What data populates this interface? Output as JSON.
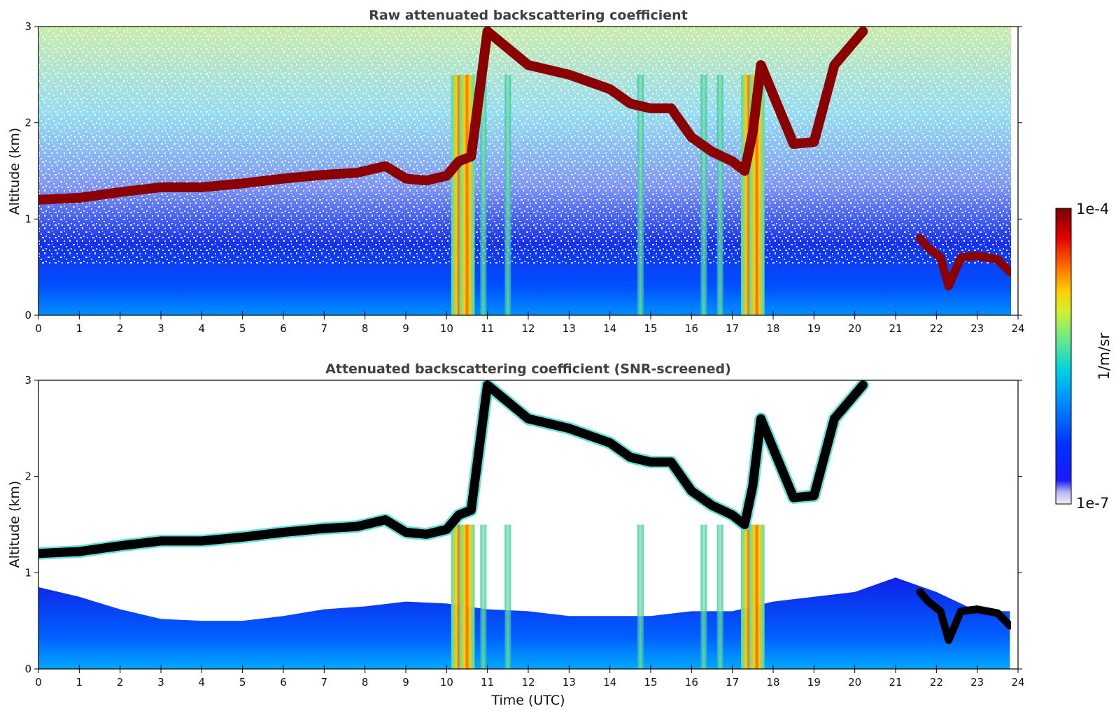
{
  "chart_data": [
    {
      "type": "heatmap",
      "title": "Raw attenuated backscattering coefficient",
      "xlabel": "",
      "ylabel": "Altitude (km)",
      "xlim": [
        0,
        24
      ],
      "ylim": [
        0,
        3
      ],
      "xticks": [
        "0",
        "1",
        "2",
        "3",
        "4",
        "5",
        "6",
        "7",
        "8",
        "9",
        "10",
        "11",
        "12",
        "13",
        "14",
        "15",
        "16",
        "17",
        "18",
        "19",
        "20",
        "21",
        "22",
        "23",
        "24"
      ],
      "yticks": [
        "0",
        "1",
        "2",
        "3"
      ],
      "data_extent_x": [
        0,
        23.8
      ],
      "cloud_layer": {
        "time": [
          0,
          1,
          2,
          3,
          4,
          5,
          6,
          7,
          7.8,
          8.5,
          9,
          9.5,
          10,
          10.3,
          10.6,
          11,
          12,
          13,
          14,
          14.5,
          15,
          15.5,
          16,
          16.5,
          17,
          17.3,
          17.5,
          17.7,
          18.5,
          19,
          19.5,
          20,
          20.2
        ],
        "altitude_km": [
          1.2,
          1.22,
          1.28,
          1.33,
          1.33,
          1.37,
          1.42,
          1.46,
          1.48,
          1.55,
          1.42,
          1.4,
          1.45,
          1.6,
          1.65,
          2.95,
          2.6,
          2.5,
          2.35,
          2.2,
          2.15,
          2.15,
          1.85,
          1.7,
          1.6,
          1.5,
          1.9,
          2.6,
          1.78,
          1.8,
          2.6,
          2.85,
          2.95
        ]
      },
      "low_cloud": {
        "time": [
          21.6,
          21.8,
          22.1,
          22.3,
          22.6,
          23,
          23.5,
          23.8
        ],
        "altitude_km": [
          0.8,
          0.7,
          0.6,
          0.3,
          0.6,
          0.62,
          0.58,
          0.45
        ]
      },
      "precip_shafts_hours": [
        10.3,
        10.5,
        10.9,
        11.5,
        14.75,
        16.3,
        16.7,
        17.4,
        17.6
      ]
    },
    {
      "type": "heatmap",
      "title": "Attenuated backscattering coefficient (SNR-screened)",
      "xlabel": "Time (UTC)",
      "ylabel": "Altitude (km)",
      "xlim": [
        0,
        24
      ],
      "ylim": [
        0,
        3
      ],
      "xticks": [
        "0",
        "1",
        "2",
        "3",
        "4",
        "5",
        "6",
        "7",
        "8",
        "9",
        "10",
        "11",
        "12",
        "13",
        "14",
        "15",
        "16",
        "17",
        "18",
        "19",
        "20",
        "21",
        "22",
        "23",
        "24"
      ],
      "yticks": [
        "0",
        "1",
        "2",
        "3"
      ],
      "screened_boundary_km": {
        "time": [
          0,
          1,
          2,
          3,
          4,
          5,
          6,
          7,
          8,
          9,
          10,
          11,
          12,
          13,
          14,
          15,
          16,
          17,
          18,
          19,
          20,
          21,
          22,
          23,
          23.8
        ],
        "altitude_km": [
          0.85,
          0.75,
          0.62,
          0.52,
          0.5,
          0.5,
          0.55,
          0.62,
          0.65,
          0.7,
          0.68,
          0.62,
          0.6,
          0.55,
          0.55,
          0.55,
          0.6,
          0.6,
          0.7,
          0.75,
          0.8,
          0.95,
          0.8,
          0.6,
          0.6
        ]
      }
    }
  ],
  "colorbar": {
    "label": "1/m/sr",
    "max_label": "1e-4",
    "min_label": "1e-7",
    "colors": [
      "#e8e8f8",
      "#0000c8",
      "#0050ff",
      "#00b0f0",
      "#40e0c0",
      "#a0e060",
      "#ffe000",
      "#ff8000",
      "#e00000",
      "#800000"
    ]
  }
}
